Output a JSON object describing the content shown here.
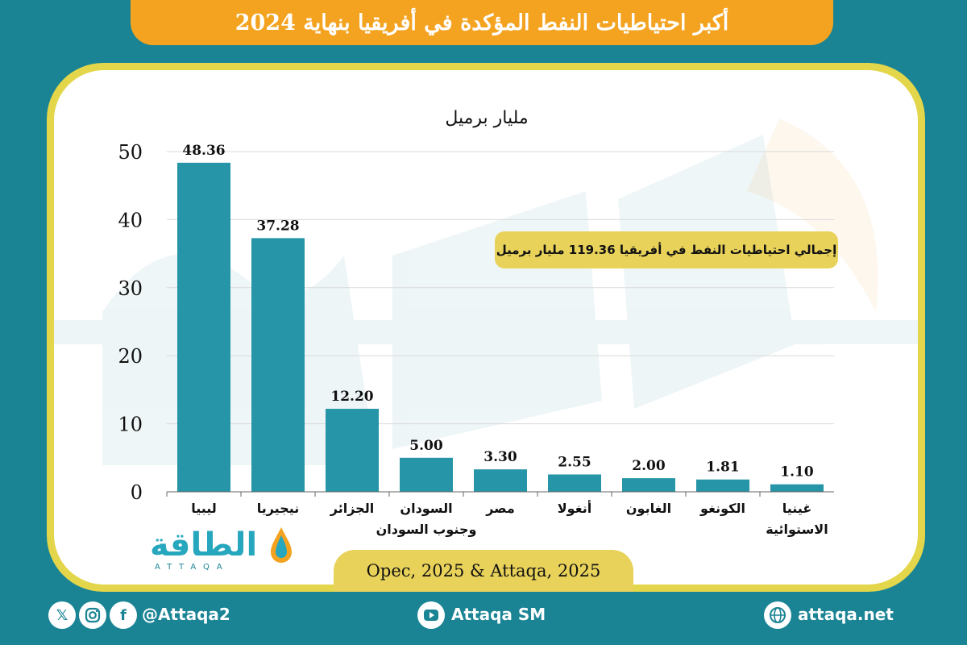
{
  "title": "أكبر احتياطيات النفط المؤكدة في أفريقيا بنهاية 2024",
  "total_note": "إجمالي احتياطيات النفط في أفريقيا 119.36 مليار برميل",
  "source": "Opec, 2025 & Attaqa, 2025",
  "logo": {
    "text": "الطاقة",
    "sub": "ATTAQA"
  },
  "footer": {
    "social_handle": "@Attaqa2",
    "youtube": "Attaqa SM",
    "website": "attaqa.net"
  },
  "colors": {
    "bar": "#2595a7",
    "banner": "#f4a320",
    "frame": "#e3d64a",
    "background": "#1a8494"
  },
  "chart_data": {
    "type": "bar",
    "ylabel": "مليار برميل",
    "ylim": [
      0,
      50
    ],
    "yticks": [
      0,
      10,
      20,
      30,
      40,
      50
    ],
    "categories": [
      [
        "ليبيا"
      ],
      [
        "نيجيريا"
      ],
      [
        "الجزائر"
      ],
      [
        "السودان",
        "وجنوب السودان"
      ],
      [
        "مصر"
      ],
      [
        "أنغولا"
      ],
      [
        "الغابون"
      ],
      [
        "الكونغو"
      ],
      [
        "غينيا",
        "الاستوائية"
      ]
    ],
    "values": [
      48.36,
      37.28,
      12.2,
      5.0,
      3.3,
      2.55,
      2.0,
      1.81,
      1.1
    ],
    "value_labels": [
      "48.36",
      "37.28",
      "12.20",
      "5.00",
      "3.30",
      "2.55",
      "2.00",
      "1.81",
      "1.10"
    ],
    "grid": true,
    "legend": "none"
  }
}
